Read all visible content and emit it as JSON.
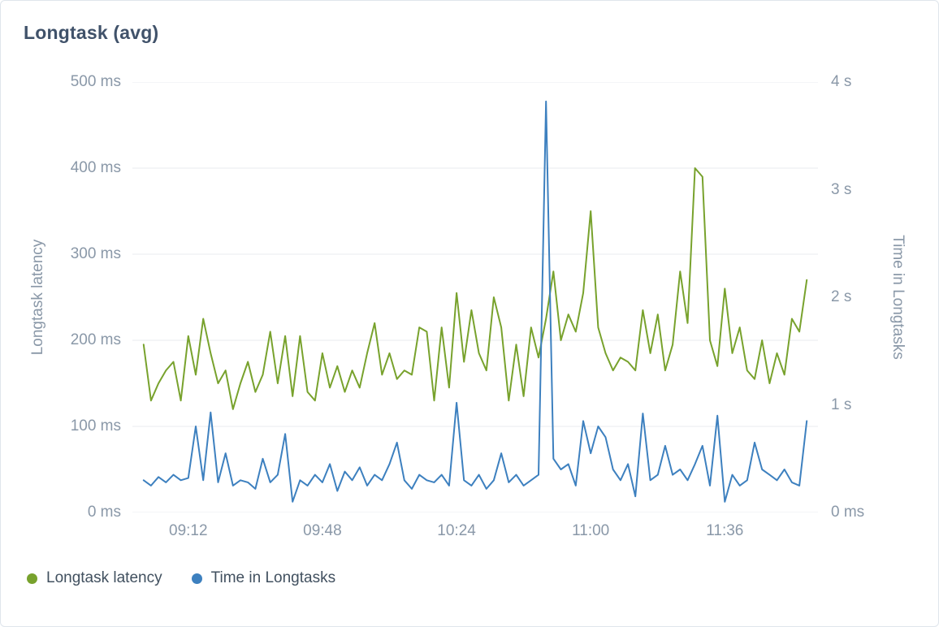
{
  "panel": {
    "title": "Longtask (avg)"
  },
  "colors": {
    "latency_series": "#78a22d",
    "time_series": "#3d80bf",
    "grid": "#e8ebef",
    "tick_text": "#8a98a8",
    "title_text": "#40526a"
  },
  "legend": [
    {
      "label": "Longtask latency",
      "color": "#78a22d"
    },
    {
      "label": "Time in Longtasks",
      "color": "#3d80bf"
    }
  ],
  "chart_data": {
    "type": "line",
    "title": "Longtask (avg)",
    "grid": "horizontal",
    "legend_position": "bottom-left",
    "x_domain": [
      "08:57",
      "12:01"
    ],
    "x_tick_labels": [
      "09:12",
      "09:48",
      "10:24",
      "11:00",
      "11:36"
    ],
    "left_axis": {
      "label": "Longtask latency",
      "unit": "ms",
      "min": 0,
      "max": 500,
      "ticks": [
        {
          "label": "500 ms",
          "value": 500
        },
        {
          "label": "400 ms",
          "value": 400
        },
        {
          "label": "300 ms",
          "value": 300
        },
        {
          "label": "200 ms",
          "value": 200
        },
        {
          "label": "100 ms",
          "value": 100
        },
        {
          "label": "0 ms",
          "value": 0
        }
      ]
    },
    "right_axis": {
      "label": "Time in Longtasks",
      "unit": "s",
      "min": 0,
      "max": 4,
      "ticks": [
        {
          "label": "4 s",
          "value": 4
        },
        {
          "label": "3 s",
          "value": 3
        },
        {
          "label": "2 s",
          "value": 2
        },
        {
          "label": "1 s",
          "value": 1
        },
        {
          "label": "0 ms",
          "value": 0
        }
      ]
    },
    "x": [
      "09:00",
      "09:02",
      "09:04",
      "09:06",
      "09:08",
      "09:10",
      "09:12",
      "09:14",
      "09:16",
      "09:18",
      "09:20",
      "09:22",
      "09:24",
      "09:26",
      "09:28",
      "09:30",
      "09:32",
      "09:34",
      "09:36",
      "09:38",
      "09:40",
      "09:42",
      "09:44",
      "09:46",
      "09:48",
      "09:50",
      "09:52",
      "09:54",
      "09:56",
      "09:58",
      "10:00",
      "10:02",
      "10:04",
      "10:06",
      "10:08",
      "10:10",
      "10:12",
      "10:14",
      "10:16",
      "10:18",
      "10:20",
      "10:22",
      "10:24",
      "10:26",
      "10:28",
      "10:30",
      "10:32",
      "10:34",
      "10:36",
      "10:38",
      "10:40",
      "10:42",
      "10:44",
      "10:46",
      "10:48",
      "10:50",
      "10:52",
      "10:54",
      "10:56",
      "10:58",
      "11:00",
      "11:02",
      "11:04",
      "11:06",
      "11:08",
      "11:10",
      "11:12",
      "11:14",
      "11:16",
      "11:18",
      "11:20",
      "11:22",
      "11:24",
      "11:26",
      "11:28",
      "11:30",
      "11:32",
      "11:34",
      "11:36",
      "11:38",
      "11:40",
      "11:42",
      "11:44",
      "11:46",
      "11:48",
      "11:50",
      "11:52",
      "11:54",
      "11:56",
      "11:58"
    ],
    "series": [
      {
        "id": "longtask-latency",
        "name": "Longtask latency",
        "axis": "left",
        "unit": "ms",
        "color": "#78a22d",
        "values": [
          195,
          130,
          150,
          165,
          175,
          130,
          205,
          160,
          225,
          185,
          150,
          165,
          120,
          150,
          175,
          140,
          160,
          210,
          150,
          205,
          135,
          205,
          140,
          130,
          185,
          145,
          170,
          140,
          165,
          145,
          185,
          220,
          160,
          185,
          155,
          165,
          160,
          215,
          210,
          130,
          215,
          145,
          255,
          175,
          235,
          185,
          165,
          250,
          215,
          130,
          195,
          135,
          215,
          180,
          225,
          280,
          200,
          230,
          210,
          255,
          350,
          215,
          185,
          165,
          180,
          175,
          165,
          235,
          185,
          230,
          165,
          195,
          280,
          220,
          400,
          390,
          200,
          170,
          260,
          185,
          215,
          165,
          155,
          200,
          150,
          185,
          160,
          225,
          210,
          270
        ]
      },
      {
        "id": "time-in-longtasks",
        "name": "Time in Longtasks",
        "axis": "right",
        "unit": "s",
        "color": "#3d80bf",
        "values": [
          0.3,
          0.25,
          0.33,
          0.28,
          0.35,
          0.3,
          0.32,
          0.8,
          0.3,
          0.93,
          0.28,
          0.55,
          0.25,
          0.3,
          0.28,
          0.22,
          0.5,
          0.28,
          0.35,
          0.73,
          0.1,
          0.3,
          0.25,
          0.35,
          0.28,
          0.45,
          0.2,
          0.38,
          0.3,
          0.42,
          0.25,
          0.35,
          0.3,
          0.45,
          0.65,
          0.3,
          0.22,
          0.35,
          0.3,
          0.28,
          0.35,
          0.25,
          1.02,
          0.3,
          0.25,
          0.35,
          0.22,
          0.3,
          0.55,
          0.28,
          0.35,
          0.25,
          0.3,
          0.35,
          3.82,
          0.5,
          0.4,
          0.45,
          0.25,
          0.85,
          0.55,
          0.8,
          0.7,
          0.4,
          0.3,
          0.45,
          0.15,
          0.92,
          0.3,
          0.35,
          0.62,
          0.35,
          0.4,
          0.3,
          0.45,
          0.62,
          0.25,
          0.9,
          0.1,
          0.35,
          0.25,
          0.3,
          0.65,
          0.4,
          0.35,
          0.3,
          0.4,
          0.28,
          0.25,
          0.85
        ]
      }
    ]
  }
}
